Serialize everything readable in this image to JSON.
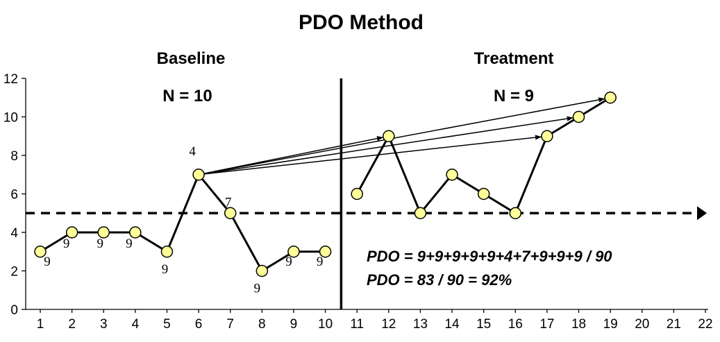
{
  "chart_data": {
    "type": "line",
    "title": "PDO Method",
    "xlabel": "",
    "ylabel": "",
    "xlim": [
      1,
      22
    ],
    "ylim": [
      0,
      12
    ],
    "x_ticks": [
      "1",
      "2",
      "3",
      "4",
      "5",
      "6",
      "7",
      "8",
      "9",
      "10",
      "11",
      "12",
      "13",
      "14",
      "15",
      "16",
      "17",
      "18",
      "19",
      "20",
      "21",
      "22"
    ],
    "y_ticks": [
      "0",
      "2",
      "4",
      "6",
      "8",
      "10",
      "12"
    ],
    "grid": false,
    "phases": [
      {
        "label": "Baseline",
        "n_label": "N = 10"
      },
      {
        "label": "Treatment",
        "n_label": "N = 9"
      }
    ],
    "phase_change_x": 10.5,
    "reference_line_y": 5,
    "series": [
      {
        "x": [
          1,
          2,
          3,
          4,
          5,
          6,
          7,
          8,
          9,
          10
        ],
        "values": [
          3,
          4,
          4,
          4,
          3,
          7,
          5,
          2,
          3,
          3
        ],
        "point_labels": [
          "9",
          "9",
          "9",
          "9",
          "9",
          "4",
          "7",
          "9",
          "9",
          "9"
        ]
      },
      {
        "x": [
          11,
          12,
          13,
          14,
          15,
          16,
          17,
          18,
          19
        ],
        "values": [
          6,
          9,
          5,
          7,
          6,
          5,
          9,
          10,
          11
        ]
      }
    ],
    "arrows": [
      {
        "from": [
          6,
          7
        ],
        "to": [
          12,
          9
        ]
      },
      {
        "from": [
          6,
          7
        ],
        "to": [
          17,
          9
        ]
      },
      {
        "from": [
          6,
          7
        ],
        "to": [
          18,
          10
        ]
      },
      {
        "from": [
          6,
          7
        ],
        "to": [
          19,
          11
        ]
      }
    ],
    "annotations": [
      "PDO = 9+9+9+9+9+4+7+9+9+9 / 90",
      "PDO = 83 / 90 = 92%"
    ],
    "marker_color": "#ffff99",
    "line_color": "#000000"
  }
}
